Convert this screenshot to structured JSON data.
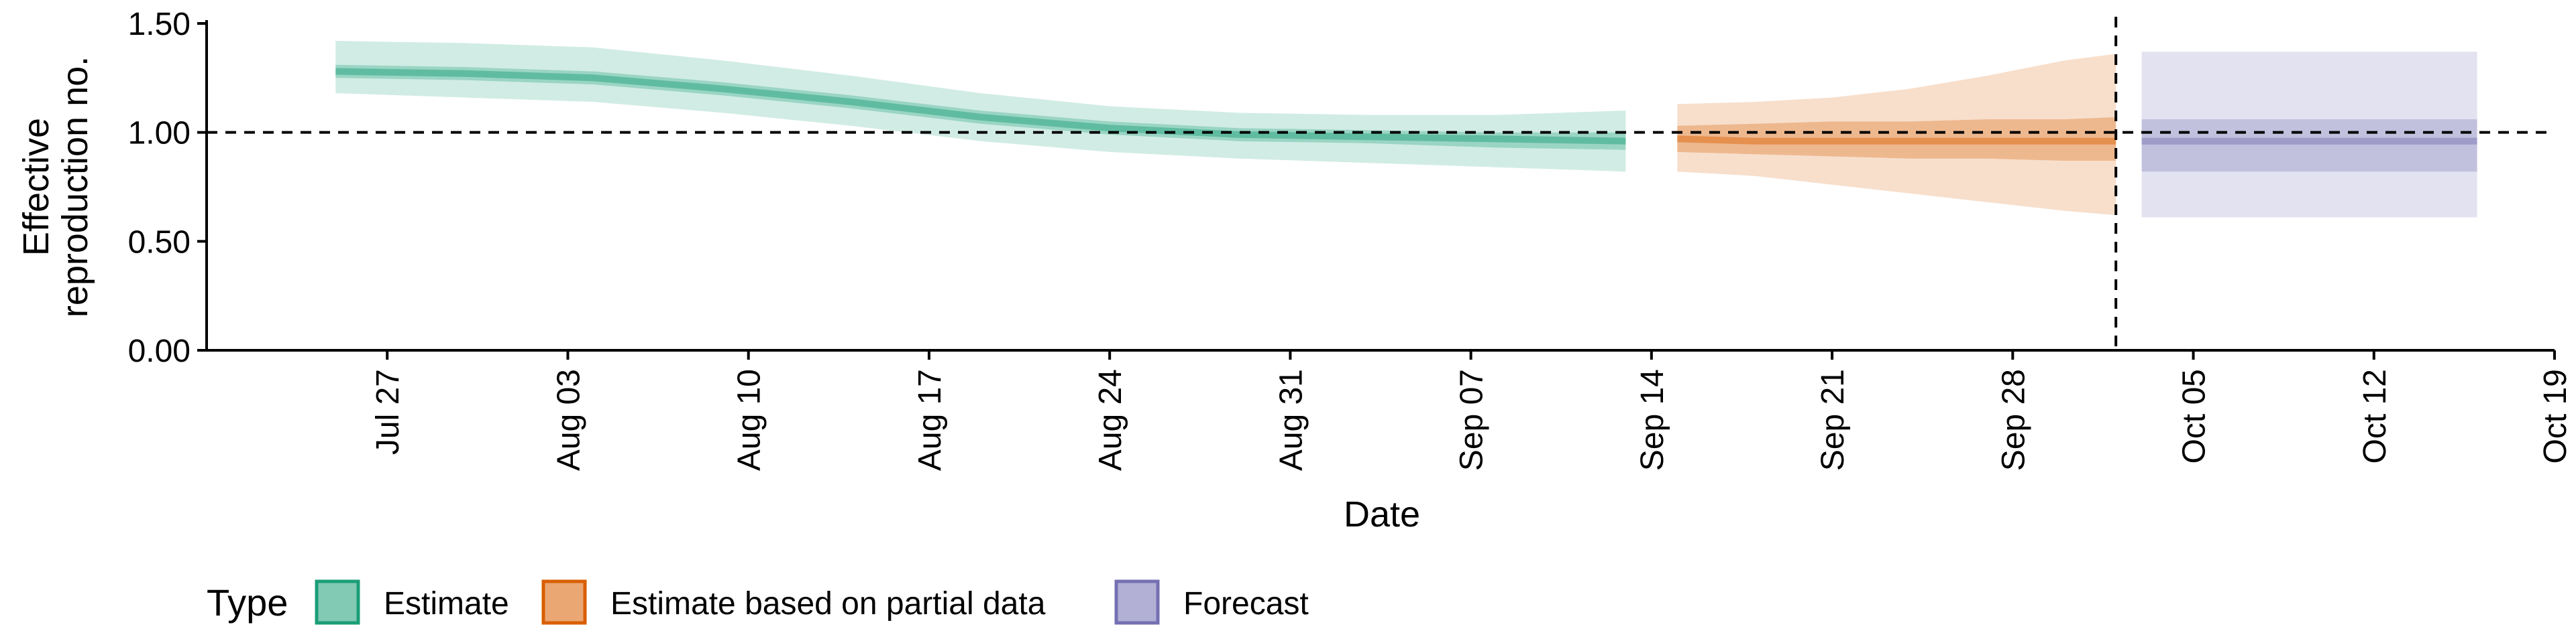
{
  "chart_data": {
    "type": "area",
    "title": "",
    "xlabel": "Date",
    "ylabel_lines": [
      "Effective",
      "reproduction no."
    ],
    "ylim": [
      0,
      1.5
    ],
    "yticks": [
      0,
      0.5,
      1.0,
      1.5
    ],
    "ytick_labels": [
      "0.00",
      "0.50",
      "1.00",
      "1.50"
    ],
    "xlim": [
      "2020-07-20",
      "2020-10-19"
    ],
    "xticks": [
      "2020-07-27",
      "2020-08-03",
      "2020-08-10",
      "2020-08-17",
      "2020-08-24",
      "2020-08-31",
      "2020-09-07",
      "2020-09-14",
      "2020-09-21",
      "2020-09-28",
      "2020-10-05",
      "2020-10-12",
      "2020-10-19"
    ],
    "xtick_labels": [
      "Jul 27",
      "Aug 03",
      "Aug 10",
      "Aug 17",
      "Aug 24",
      "Aug 31",
      "Sep 07",
      "Sep 14",
      "Sep 21",
      "Sep 28",
      "Oct 05",
      "Oct 12",
      "Oct 19"
    ],
    "hline": 1.0,
    "vline": "2020-10-02",
    "grid": false,
    "legend": {
      "title": "Type",
      "position": "bottom-left",
      "items": [
        "Estimate",
        "Estimate based on partial data",
        "Forecast"
      ]
    },
    "series": [
      {
        "name": "Estimate",
        "color": "#1b9e77",
        "x": [
          "2020-07-25",
          "2020-07-30",
          "2020-08-04",
          "2020-08-09",
          "2020-08-14",
          "2020-08-19",
          "2020-08-24",
          "2020-08-29",
          "2020-09-03",
          "2020-09-08",
          "2020-09-13"
        ],
        "median": [
          1.28,
          1.27,
          1.25,
          1.2,
          1.14,
          1.07,
          1.02,
          0.99,
          0.98,
          0.97,
          0.96
        ],
        "lower_50": [
          1.25,
          1.24,
          1.22,
          1.17,
          1.11,
          1.04,
          0.99,
          0.96,
          0.95,
          0.93,
          0.92
        ],
        "upper_50": [
          1.31,
          1.3,
          1.28,
          1.23,
          1.17,
          1.1,
          1.05,
          1.02,
          1.01,
          1.0,
          1.0
        ],
        "lower_90": [
          1.18,
          1.16,
          1.14,
          1.09,
          1.03,
          0.96,
          0.91,
          0.88,
          0.86,
          0.84,
          0.82
        ],
        "upper_90": [
          1.42,
          1.41,
          1.39,
          1.33,
          1.26,
          1.18,
          1.12,
          1.09,
          1.08,
          1.08,
          1.1
        ]
      },
      {
        "name": "Estimate based on partial data",
        "color": "#d95f02",
        "x": [
          "2020-09-15",
          "2020-09-18",
          "2020-09-21",
          "2020-09-24",
          "2020-09-27",
          "2020-09-30",
          "2020-10-02"
        ],
        "median": [
          0.97,
          0.96,
          0.96,
          0.96,
          0.96,
          0.96,
          0.96
        ],
        "lower_50": [
          0.91,
          0.9,
          0.89,
          0.88,
          0.88,
          0.87,
          0.87
        ],
        "upper_50": [
          1.03,
          1.04,
          1.05,
          1.05,
          1.06,
          1.06,
          1.07
        ],
        "lower_90": [
          0.82,
          0.8,
          0.76,
          0.72,
          0.68,
          0.64,
          0.62
        ],
        "upper_90": [
          1.13,
          1.14,
          1.16,
          1.2,
          1.26,
          1.33,
          1.36
        ]
      },
      {
        "name": "Forecast",
        "color": "#7570b3",
        "x": [
          "2020-10-03",
          "2020-10-16"
        ],
        "median": [
          0.96,
          0.96
        ],
        "lower_50": [
          0.82,
          0.82
        ],
        "upper_50": [
          1.06,
          1.06
        ],
        "lower_90": [
          0.61,
          0.61
        ],
        "upper_90": [
          1.37,
          1.37
        ]
      }
    ]
  }
}
